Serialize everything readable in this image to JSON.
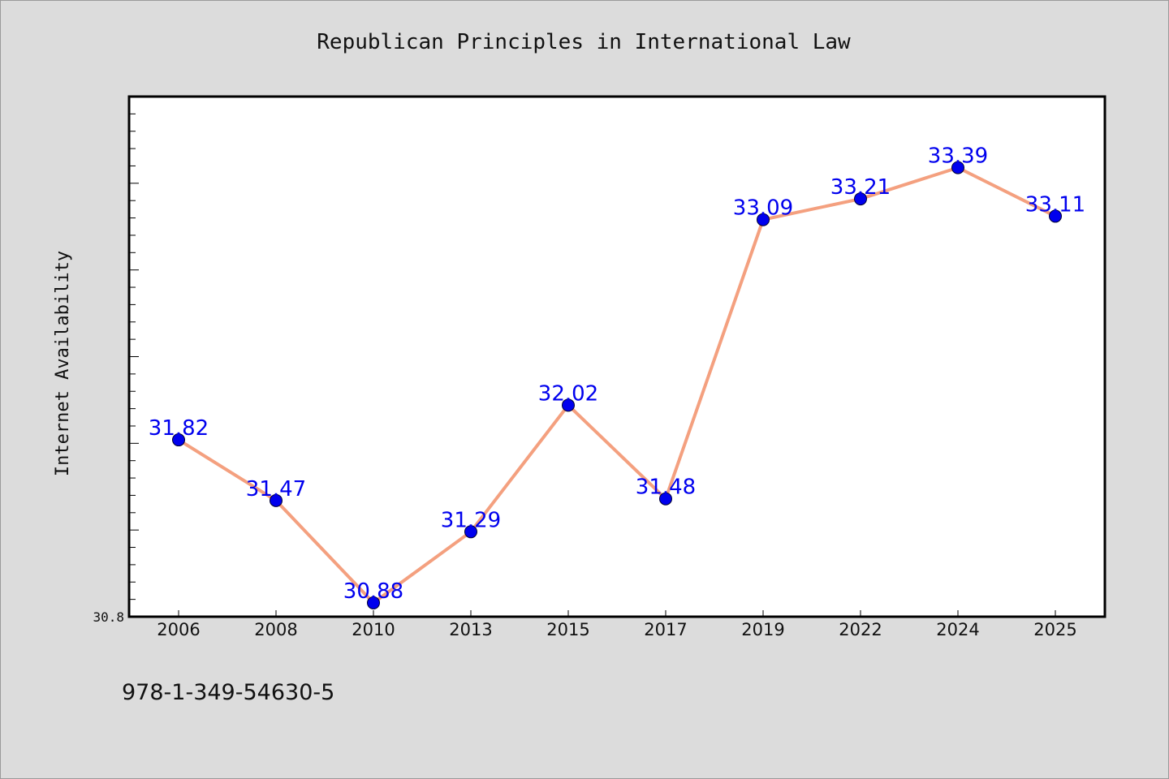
{
  "chart_data": {
    "type": "line",
    "title": "Republican Principles in International Law",
    "xlabel": "",
    "ylabel": "Internet Availability",
    "categories": [
      "2006",
      "2008",
      "2010",
      "2013",
      "2015",
      "2017",
      "2019",
      "2022",
      "2024",
      "2025"
    ],
    "values": [
      31.82,
      31.47,
      30.88,
      31.29,
      32.02,
      31.48,
      33.09,
      33.21,
      33.39,
      33.11
    ],
    "data_labels": [
      "31.82",
      "31.47",
      "30.88",
      "31.29",
      "32.02",
      "31.48",
      "33.09",
      "33.21",
      "33.39",
      "33.11"
    ],
    "ylim": [
      30.8,
      33.8
    ],
    "y_tick_labels": [
      "30.8"
    ],
    "grid": false,
    "legend": "none",
    "colors": {
      "line": "#f4a07f",
      "marker": "#0000ee",
      "label": "#0000ee",
      "background": "#dcdcdc",
      "plot_background": "#ffffff"
    }
  },
  "footer": {
    "isbn": "978-1-349-54630-5"
  }
}
